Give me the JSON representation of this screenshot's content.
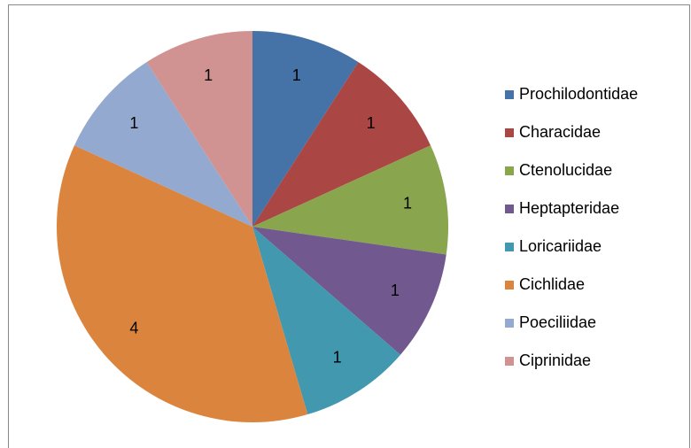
{
  "chart_data": {
    "type": "pie",
    "categories": [
      "Prochilodontidae",
      "Characidae",
      "Ctenolucidae",
      "Heptapteridae",
      "Loricariidae",
      "Cichlidae",
      "Poeciliidae",
      "Ciprinidae"
    ],
    "values": [
      1,
      1,
      1,
      1,
      1,
      4,
      1,
      1
    ],
    "colors": [
      "#4572a7",
      "#aa4643",
      "#89a54e",
      "#71588f",
      "#4198af",
      "#db843d",
      "#93a9cf",
      "#d19392"
    ],
    "legend": "right"
  }
}
